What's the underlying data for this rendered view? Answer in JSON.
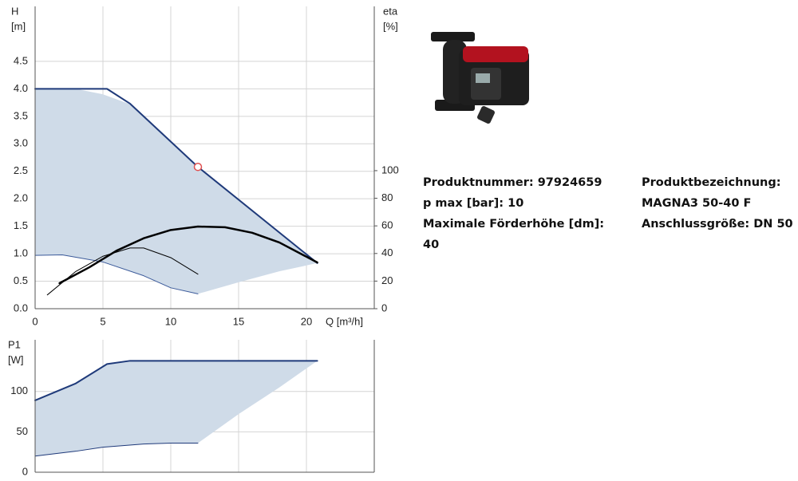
{
  "chart_data": [
    {
      "type": "line",
      "ylabel": [
        "H",
        "[m]"
      ],
      "y2label": [
        "eta",
        "[%]"
      ],
      "xlabel": "Q [m³/h]",
      "xlim": [
        0,
        25
      ],
      "xticks": [
        0,
        5,
        10,
        15,
        20
      ],
      "ylim": [
        0,
        5.5
      ],
      "yticks": [
        {
          "value": 0,
          "label": "0.0"
        },
        0.5,
        {
          "value": 1,
          "label": "1.0"
        },
        1.5,
        {
          "value": 2,
          "label": "2.0"
        },
        2.5,
        {
          "value": 3,
          "label": "3.0"
        },
        3.5,
        {
          "value": 4,
          "label": "4.0"
        },
        4.5
      ],
      "y2lim": [
        0,
        219
      ],
      "y2ticks": [
        0,
        20,
        40,
        60,
        80,
        100
      ],
      "grid": true,
      "series": [
        {
          "style": "area",
          "color": "#cfdbe8",
          "x": [
            0,
            3,
            5,
            7,
            12,
            20.8,
            18,
            15,
            12,
            10,
            8,
            5,
            2,
            0
          ],
          "values": [
            4.0,
            4.0,
            3.9,
            3.72,
            2.58,
            0.83,
            0.68,
            0.48,
            0.27,
            0.38,
            0.6,
            0.85,
            0.98,
            0.97
          ]
        },
        {
          "style": "line",
          "color": "#1f3a7a",
          "width": 2,
          "x": [
            0,
            5.3,
            7,
            12,
            20.8
          ],
          "values": [
            4.0,
            4.0,
            3.73,
            2.58,
            0.83
          ]
        },
        {
          "style": "line",
          "color": "#3b5a9a",
          "width": 1,
          "x": [
            0,
            2,
            5,
            8,
            10,
            12
          ],
          "values": [
            0.97,
            0.98,
            0.85,
            0.6,
            0.38,
            0.27
          ]
        },
        {
          "style": "line",
          "color": "#000000",
          "width": 2.5,
          "axis": "y2",
          "x": [
            1.8,
            4,
            6,
            8,
            10,
            12,
            14,
            16,
            18,
            20.8
          ],
          "values": [
            18.5,
            30,
            42,
            51,
            57,
            59.5,
            59,
            55,
            48,
            33.5
          ]
        },
        {
          "style": "line",
          "color": "#000000",
          "width": 1,
          "axis": "y2",
          "x": [
            0.9,
            3,
            5,
            7,
            8,
            10,
            12
          ],
          "values": [
            10,
            27,
            38,
            44,
            44,
            37,
            25
          ]
        },
        {
          "style": "marker",
          "color": "#e05050",
          "x": [
            12
          ],
          "values": [
            2.58
          ]
        }
      ]
    },
    {
      "type": "line",
      "ylabel": [
        "P1",
        "[W]"
      ],
      "xlim": [
        0,
        25
      ],
      "xticks": [
        0,
        5,
        10,
        15,
        20
      ],
      "ylim": [
        0,
        164
      ],
      "yticks": [
        0,
        50,
        100
      ],
      "grid": true,
      "series": [
        {
          "style": "area",
          "color": "#cfdbe8",
          "x": [
            0,
            3,
            5.3,
            7,
            20.8,
            18,
            15,
            12,
            10,
            8,
            5,
            3,
            0
          ],
          "values": [
            89,
            110,
            134,
            138,
            138,
            105,
            72,
            36,
            36,
            35,
            31,
            26,
            20
          ]
        },
        {
          "style": "line",
          "color": "#1f3a7a",
          "width": 2,
          "x": [
            0,
            3,
            5.3,
            7,
            20.8
          ],
          "values": [
            89,
            110,
            134,
            138,
            138
          ]
        },
        {
          "style": "line",
          "color": "#1f3a7a",
          "width": 1,
          "x": [
            0,
            3,
            5,
            8,
            10,
            12
          ],
          "values": [
            20,
            26,
            31,
            35,
            36,
            36
          ]
        }
      ]
    }
  ],
  "product": {
    "left": [
      "Produktnummer: 97924659",
      "p max [bar]: 10",
      "Maximale Förderhöhe [dm]: 40"
    ],
    "right": [
      "Produktbezeichnung:",
      "MAGNA3 50-40 F",
      "Anschlussgröße: DN 50"
    ]
  }
}
